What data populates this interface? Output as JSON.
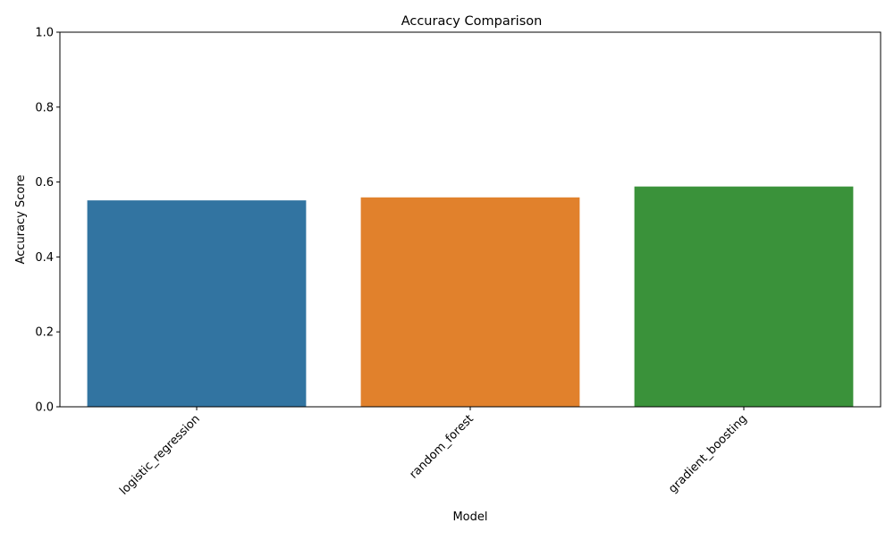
{
  "chart_data": {
    "type": "bar",
    "title": "Accuracy Comparison",
    "xlabel": "Model",
    "ylabel": "Accuracy Score",
    "categories": [
      "logistic_regression",
      "random_forest",
      "gradient_boosting"
    ],
    "values": [
      0.551,
      0.559,
      0.588
    ],
    "colors": [
      "#3274a1",
      "#e1812c",
      "#3a923a"
    ],
    "ylim": [
      0,
      1
    ],
    "yticks": [
      0.0,
      0.2,
      0.4,
      0.6,
      0.8,
      1.0
    ],
    "ytick_labels": [
      "0.0",
      "0.2",
      "0.4",
      "0.6",
      "0.8",
      "1.0"
    ],
    "xtick_rotation_deg": 45,
    "grid": false,
    "legend": "none"
  }
}
